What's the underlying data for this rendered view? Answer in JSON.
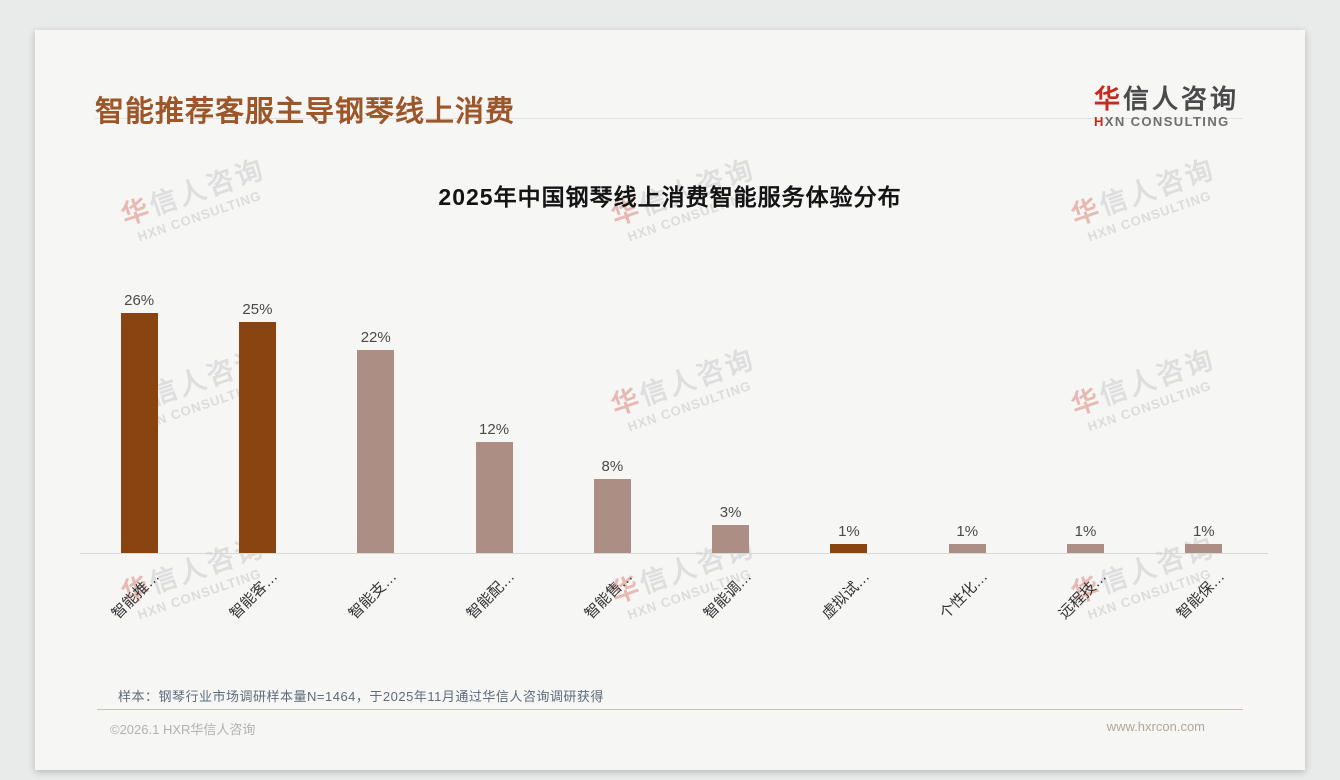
{
  "page": {
    "title": "智能推荐客服主导钢琴线上消费",
    "logo": {
      "cn_first": "华",
      "cn_rest": "信人咨询",
      "en_first": "H",
      "en_rest": "XN CONSULTING"
    },
    "watermark": {
      "cn_first": "华",
      "cn_rest": "信人咨询",
      "en": "HXN CONSULTING"
    },
    "footnote": "样本：钢琴行业市场调研样本量N=1464，于2025年11月通过华信人咨询调研获得",
    "footer_left": "©2026.1 HXR华信人咨询",
    "footer_right": "www.hxrcon.com",
    "colors": {
      "page_title": "#9c562a",
      "logo_red": "#c8281e",
      "footnote_text": "#5d6b7a"
    }
  },
  "chart_data": {
    "type": "bar",
    "title": "2025年中国钢琴线上消费智能服务体验分布",
    "categories": [
      "智能推…",
      "智能客…",
      "智能支…",
      "智能配…",
      "智能售…",
      "智能调…",
      "虚拟试…",
      "个性化…",
      "远程技…",
      "智能保…"
    ],
    "values": [
      26,
      25,
      22,
      12,
      8,
      3,
      1,
      1,
      1,
      1
    ],
    "value_labels": [
      "26%",
      "25%",
      "22%",
      "12%",
      "8%",
      "3%",
      "1%",
      "1%",
      "1%",
      "1%"
    ],
    "highlighted": [
      true,
      true,
      false,
      false,
      false,
      false,
      true,
      false,
      false,
      false
    ],
    "colors": {
      "highlight": "#8a4412",
      "normal": "#ad8e85"
    },
    "unit": "%",
    "ylim": [
      0,
      28
    ],
    "grid": false,
    "legend": null,
    "xlabel": "",
    "ylabel": ""
  }
}
